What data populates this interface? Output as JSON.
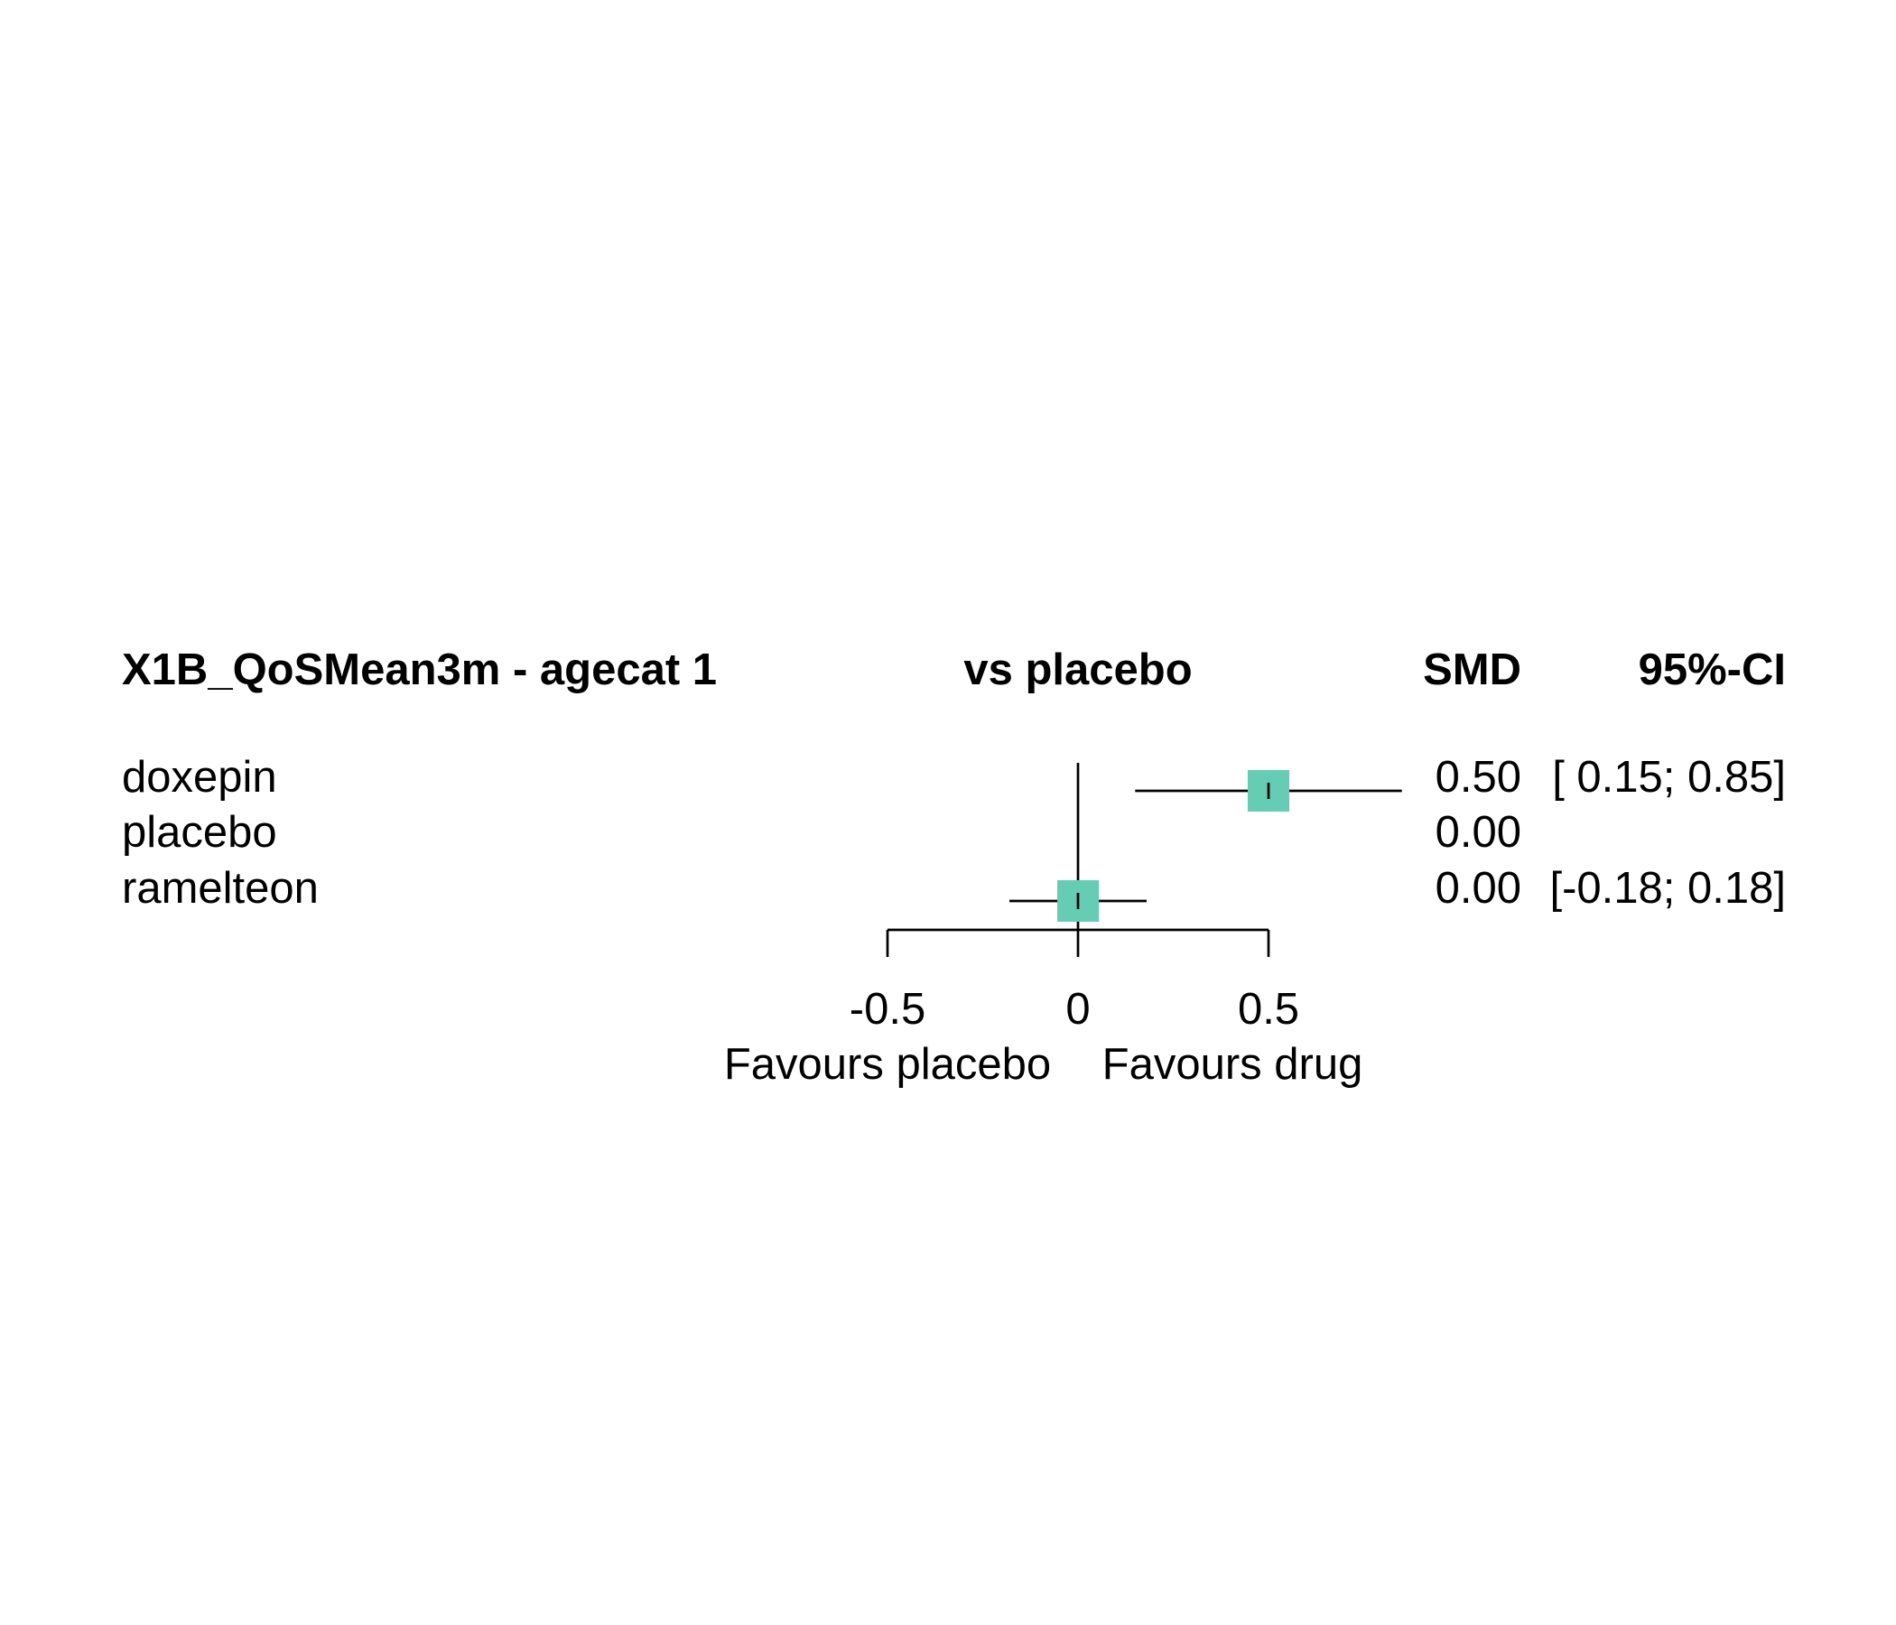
{
  "chart_data": {
    "type": "forest",
    "columns": {
      "study_header": "X1B_QoSMean3m - agecat 1",
      "plot_header": "vs placebo",
      "smd_header": "SMD",
      "ci_header": "95%-CI"
    },
    "rows": [
      {
        "label": "doxepin",
        "smd": 0.5,
        "lower": 0.15,
        "upper": 0.85,
        "smd_text": "0.50",
        "ci_text": "[ 0.15; 0.85]"
      },
      {
        "label": "placebo",
        "smd": 0.0,
        "lower": null,
        "upper": null,
        "smd_text": "0.00",
        "ci_text": ""
      },
      {
        "label": "ramelteon",
        "smd": 0.0,
        "lower": -0.18,
        "upper": 0.18,
        "smd_text": "0.00",
        "ci_text": "[-0.18; 0.18]"
      }
    ],
    "x_axis": {
      "ticks": [
        -0.5,
        0,
        0.5
      ],
      "tick_labels": [
        "-0.5",
        "0",
        "0.5"
      ],
      "range": [
        -0.5,
        0.5
      ],
      "reference_line": 0
    },
    "favours_left": "Favours placebo",
    "favours_right": "Favours drug",
    "marker_color": "#66CDB5",
    "line_color": "#000000"
  }
}
